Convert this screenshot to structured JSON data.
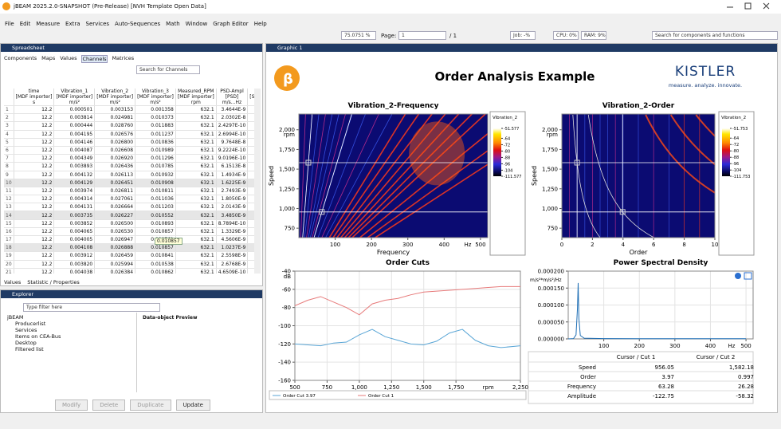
{
  "window": {
    "title": "jBEAM 2025.2.0-SNAPSHOT (Pre-Release) [NVH Template Open Data]"
  },
  "menu": [
    "File",
    "Edit",
    "Measure",
    "Extra",
    "Services",
    "Auto-Sequences",
    "Math",
    "Window",
    "Graph Editor",
    "Help"
  ],
  "toolbar": {
    "zoom": "75.0751 %",
    "page_label": "Page:",
    "page": "1",
    "page_count": "/ 1",
    "jobs": "Job: -%",
    "cpu": "CPU: 0%",
    "ram": "RAM: 9%",
    "search": "Search for components and functions"
  },
  "spreadsheet": {
    "title": "Spreadsheet",
    "tabs": [
      "Components",
      "Maps",
      "Values",
      "Channels",
      "Matrices"
    ],
    "search": "Search for Channels",
    "columns": [
      [
        "time",
        "[MDF importer]",
        "s"
      ],
      [
        "Vibration_1",
        "[MDF importer]",
        "m/s²"
      ],
      [
        "Vibration_2",
        "[MDF importer]",
        "m/s²"
      ],
      [
        "Vibration_3",
        "[MDF importer]",
        "m/s²"
      ],
      [
        "Measured_RPM",
        "[MDF importer]",
        "rpm"
      ],
      [
        "PSD-Ampl",
        "[PSD]",
        "m/s...Hz"
      ],
      [
        "[Sp"
      ]
    ],
    "rows": [
      [
        "1",
        "12.2",
        "0.000501",
        "0.003153",
        "0.001358",
        "632.1",
        "3.4644E-9"
      ],
      [
        "2",
        "12.2",
        "0.003814",
        "0.024981",
        "0.010373",
        "632.1",
        "2.0302E-8"
      ],
      [
        "3",
        "12.2",
        "0.000444",
        "0.028760",
        "0.011883",
        "632.1",
        "2.4297E-10"
      ],
      [
        "4",
        "12.2",
        "0.004195",
        "0.026576",
        "0.011237",
        "632.1",
        "2.6994E-10"
      ],
      [
        "5",
        "12.2",
        "0.004146",
        "0.026800",
        "0.010836",
        "632.1",
        "9.7648E-8"
      ],
      [
        "6",
        "12.2",
        "0.004087",
        "0.026608",
        "0.010989",
        "632.1",
        "9.2224E-10"
      ],
      [
        "7",
        "12.2",
        "0.004349",
        "0.026920",
        "0.011296",
        "632.1",
        "9.0196E-10"
      ],
      [
        "8",
        "12.2",
        "0.003893",
        "0.026436",
        "0.010785",
        "632.1",
        "6.1513E-8"
      ],
      [
        "9",
        "12.2",
        "0.004132",
        "0.026113",
        "0.010932",
        "632.1",
        "1.4934E-9"
      ],
      [
        "10",
        "12.2",
        "0.004129",
        "0.026451",
        "0.010908",
        "632.1",
        "1.6225E-9"
      ],
      [
        "11",
        "12.2",
        "0.003974",
        "0.026811",
        "0.010811",
        "632.1",
        "2.7493E-9"
      ],
      [
        "12",
        "12.2",
        "0.004314",
        "0.027061",
        "0.011036",
        "632.1",
        "1.8050E-9"
      ],
      [
        "13",
        "12.2",
        "0.004131",
        "0.026664",
        "0.011203",
        "632.1",
        "2.0143E-9"
      ],
      [
        "14",
        "12.2",
        "0.003735",
        "0.026227",
        "0.010552",
        "632.1",
        "3.4850E-9"
      ],
      [
        "15",
        "12.2",
        "0.003852",
        "0.026500",
        "0.010893",
        "632.1",
        "8.7894E-10"
      ],
      [
        "16",
        "12.2",
        "0.004065",
        "0.026530",
        "0.010857",
        "632.1",
        "1.3329E-9"
      ],
      [
        "17",
        "12.2",
        "0.004005",
        "0.026947",
        "0.009761",
        "632.1",
        "4.5606E-9"
      ],
      [
        "18",
        "12.2",
        "0.004108",
        "0.026888",
        "0.010857",
        "632.1",
        "1.0237E-9"
      ],
      [
        "19",
        "12.2",
        "0.003912",
        "0.026459",
        "0.010841",
        "632.1",
        "2.5598E-9"
      ],
      [
        "20",
        "12.2",
        "0.003820",
        "0.025994",
        "0.010538",
        "632.1",
        "2.6768E-9"
      ],
      [
        "21",
        "12.2",
        "0.004038",
        "0.026384",
        "0.010862",
        "632.1",
        "4.6509E-10"
      ]
    ],
    "tooltip": "0.010857",
    "bottom_tabs": [
      "Values",
      "Statistic / Properties"
    ]
  },
  "explorer": {
    "title": "Explorer",
    "search": "Type filter here",
    "tree": [
      "jBEAM",
      "Producerlist",
      "Services",
      "Items on CEA-Bus",
      "Desktop",
      "Filtered list"
    ],
    "preview": "Data-object Preview",
    "buttons": [
      "Modify",
      "Delete",
      "Duplicate",
      "Update"
    ]
  },
  "graphic": {
    "tab": "Graphic 1",
    "title": "Order Analysis Example",
    "logo_text": "KISTLER",
    "tagline": "measure. analyze. innovate.",
    "frequency_map": {
      "type": "heatmap",
      "title": "Vibration_2-Frequency",
      "x_label": "Frequency",
      "x_unit": "Hz",
      "y_label": "Speed",
      "y_unit": "rpm",
      "xlim": [
        0,
        520
      ],
      "xticks": [
        100,
        200,
        300,
        400,
        500
      ],
      "ylim": [
        630,
        2200
      ],
      "yticks": [
        {
          "value": 2000,
          "label": "2,000"
        },
        {
          "value": 1750,
          "label": "1,750"
        },
        {
          "value": 1500,
          "label": "1,500"
        },
        {
          "value": 1250,
          "label": "1,250"
        },
        {
          "value": 1000,
          "label": "1,000"
        },
        750
      ],
      "colorbar_label": "Vibration_2",
      "clim": [
        -111.577,
        -51.577
      ],
      "cticks": [
        -51.577,
        -64,
        -72,
        -80,
        -88,
        -96,
        -104,
        -111.577
      ],
      "cursors": [
        [
          63.28,
          956.05
        ],
        [
          26.28,
          1582.18
        ]
      ]
    },
    "order_map": {
      "type": "heatmap",
      "title": "Vibration_2-Order",
      "x_label": "Order",
      "y_label": "Speed",
      "y_unit": "rpm",
      "xlim": [
        0,
        10
      ],
      "xticks": [
        0,
        2,
        4,
        6,
        8,
        10
      ],
      "ylim": [
        630,
        2200
      ],
      "yticks": [
        {
          "value": 2000,
          "label": "2,000"
        },
        {
          "value": 1750,
          "label": "1,750"
        },
        {
          "value": 1500,
          "label": "1,500"
        },
        {
          "value": 1250,
          "label": "1,250"
        },
        {
          "value": 1000,
          "label": "1,000"
        },
        750
      ],
      "colorbar_label": "Vibration_2",
      "clim": [
        -111.753,
        -51.753
      ],
      "cticks": [
        -51.753,
        -64,
        -72,
        -80,
        -88,
        -96,
        -104,
        -111.753
      ],
      "cursors": [
        [
          3.97,
          956.05
        ],
        [
          0.997,
          1582.18
        ]
      ]
    },
    "order_cuts": {
      "type": "line",
      "title": "Order Cuts",
      "y_unit": "dB",
      "x_unit": "rpm",
      "grid": true,
      "xlim": [
        500,
        2250
      ],
      "xticks": [
        500,
        750,
        {
          "value": 1000,
          "label": "1,000"
        },
        {
          "value": 1250,
          "label": "1,250"
        },
        {
          "value": 1500,
          "label": "1,500"
        },
        {
          "value": 1750,
          "label": "1,750"
        },
        {
          "value": 2250,
          "label": "2,250"
        }
      ],
      "ylim": [
        -160,
        -40
      ],
      "yticks": [
        -40,
        -60,
        -80,
        -100,
        -120,
        -140,
        -160
      ],
      "x": [
        500,
        600,
        700,
        800,
        900,
        1000,
        1100,
        1200,
        1300,
        1400,
        1500,
        1600,
        1700,
        1800,
        1900,
        2000,
        2100,
        2250
      ],
      "series": [
        {
          "name": "Order Cut 3.97",
          "color": "#5aa6d6",
          "values": [
            -120,
            -121,
            -122,
            -119,
            -118,
            -110,
            -104,
            -112,
            -116,
            -120,
            -121,
            -117,
            -108,
            -104,
            -116,
            -122,
            -124,
            -122
          ]
        },
        {
          "name": "Order Cut 1",
          "color": "#e77a7a",
          "values": [
            -78,
            -72,
            -68,
            -74,
            -80,
            -88,
            -76,
            -72,
            -70,
            -66,
            -63,
            -62,
            -61,
            -60,
            -59,
            -58,
            -57,
            -57
          ]
        }
      ]
    },
    "psd": {
      "type": "line",
      "title": "Power Spectral Density",
      "y_unit": "m/s²*m/s²/Hz",
      "x_unit": "Hz",
      "grid": true,
      "xlim": [
        0,
        520
      ],
      "xticks": [
        100,
        200,
        300,
        400,
        500
      ],
      "ylim": [
        0,
        0.0002
      ],
      "yticks": [
        {
          "value": 0.0002,
          "label": "0.000200"
        },
        {
          "value": 0.00015,
          "label": "0.000150"
        },
        {
          "value": 0.0001,
          "label": "0.000100"
        },
        {
          "value": 5e-05,
          "label": "0.000050"
        },
        {
          "value": 0,
          "label": "0.000000"
        }
      ],
      "x": [
        0,
        15,
        22,
        26,
        28,
        30,
        34,
        45,
        100,
        200,
        300,
        400,
        500
      ],
      "series": [
        {
          "name": "PSD-Ampl",
          "color": "#1f6fb5",
          "values": [
            0,
            1e-06,
            1.2e-05,
            9e-05,
            0.000165,
            6e-05,
            1e-05,
            2e-06,
            1e-06,
            5e-07,
            5e-07,
            5e-07,
            5e-07
          ]
        }
      ]
    },
    "cursor_table": {
      "header": [
        "Cursor / Cut 1",
        "Cursor / Cut 2"
      ],
      "rows": [
        [
          "Speed",
          "956.05",
          "1,582.18"
        ],
        [
          "Order",
          "3.97",
          "0.997"
        ],
        [
          "Frequency",
          "63.28",
          "26.28"
        ],
        [
          "Amplitude",
          "-122.75",
          "-58.32"
        ]
      ]
    }
  }
}
